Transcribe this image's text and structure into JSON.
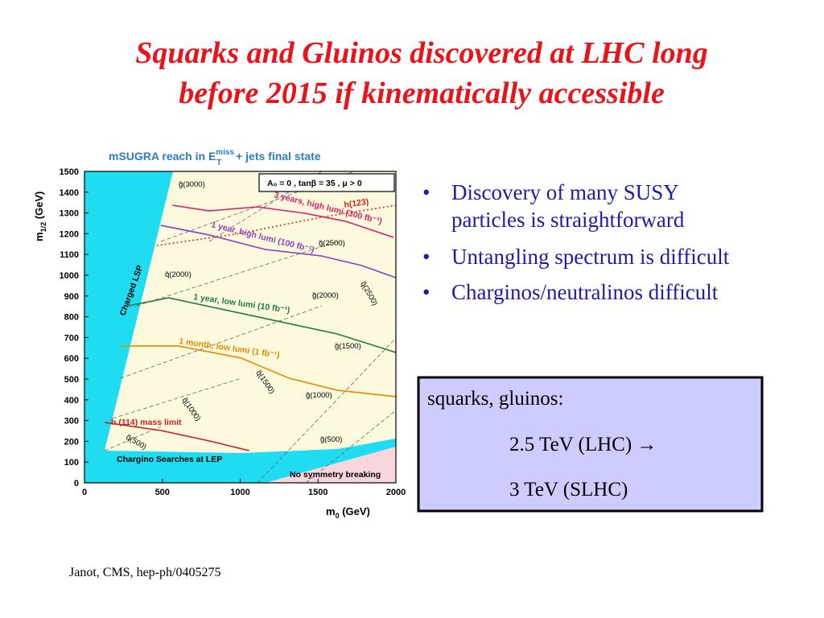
{
  "title": [
    "Squarks and Gluinos discovered at LHC long",
    "before  2015 if kinematically accessible"
  ],
  "bullets": [
    "Discovery of many SUSY",
    "particles is straightforward",
    "Untangling spectrum is difficult",
    "Charginos/neutralinos difficult"
  ],
  "box": {
    "heading": "squarks,  gluinos:",
    "lines": [
      "2.5 TeV (LHC) →",
      "3 TeV (SLHC)"
    ]
  },
  "footnote": "Janot, CMS, hep-ph/0405275",
  "chart_data": {
    "type": "line",
    "title": {
      "before": "mSUGRA reach in E",
      "sup": "miss",
      "sub": "T",
      "after": " + jets final state"
    },
    "xlabel": {
      "text": "m",
      "sub": "0",
      "unit": "  (GeV)"
    },
    "ylabel": {
      "text": "m",
      "sub": "1/2",
      "unit": "  (GeV)"
    },
    "parameters": "A₀ = 0 ,  tanβ = 35 ,  μ > 0",
    "xlim": [
      0,
      2000
    ],
    "xticks": [
      0,
      500,
      1000,
      1500,
      2000
    ],
    "ylim": [
      0,
      1500
    ],
    "yticks": [
      0,
      100,
      200,
      300,
      400,
      500,
      600,
      700,
      800,
      900,
      1000,
      1100,
      1200,
      1300,
      1400,
      1500
    ],
    "series": [
      {
        "name": "3 years, high lumi (300 fb⁻¹)",
        "color": "#d6226b",
        "style": "solid",
        "x": [
          565,
          800,
          1108,
          1418,
          1675,
          1985
        ],
        "y": [
          1337,
          1310,
          1329,
          1298,
          1260,
          1182
        ]
      },
      {
        "name": "1 year, high lumi (100 fb⁻¹)",
        "color": "#8a3fc0",
        "style": "solid",
        "x": [
          490,
          800,
          1160,
          1520,
          1778,
          2000
        ],
        "y": [
          1240,
          1194,
          1124,
          1093,
          1047,
          988
        ]
      },
      {
        "name": "1 year, low lumi (10 fb⁻¹)",
        "color": "#1f7a4a",
        "style": "solid",
        "x": [
          284,
          540,
          902,
          1263,
          1623,
          2000
        ],
        "y": [
          853,
          891,
          833,
          775,
          717,
          628
        ]
      },
      {
        "name": "1 month,  low lumi (1 fb⁻¹)",
        "color": "#e58a00",
        "style": "solid",
        "x": [
          232,
          603,
          1005,
          1314,
          1623,
          2000
        ],
        "y": [
          659,
          659,
          601,
          504,
          446,
          415
        ]
      },
      {
        "name": "h (114) mass limit",
        "color": "#c8202b",
        "style": "solid",
        "x": [
          130,
          490,
          800,
          1057
        ],
        "y": [
          291,
          252,
          202,
          155
        ]
      },
      {
        "name": "h(123)",
        "color": "#d02020",
        "style": "dotted",
        "x": [
          464,
          1005,
          1521,
          2000
        ],
        "y": [
          1143,
          1202,
          1279,
          1337
        ]
      }
    ],
    "annotations": [
      "g̃(3000)",
      "g̃(2500)",
      "q̃(2000)",
      "q̃(2500)",
      "g̃(2000)",
      "g̃(1500)",
      "q̃(1500)",
      "g̃(1000)",
      "q̃(1000)",
      "q̃(500)",
      "g̃(500)",
      "Charged LSP",
      "Chargino Searches at LEP",
      "No symmetry breaking"
    ]
  }
}
